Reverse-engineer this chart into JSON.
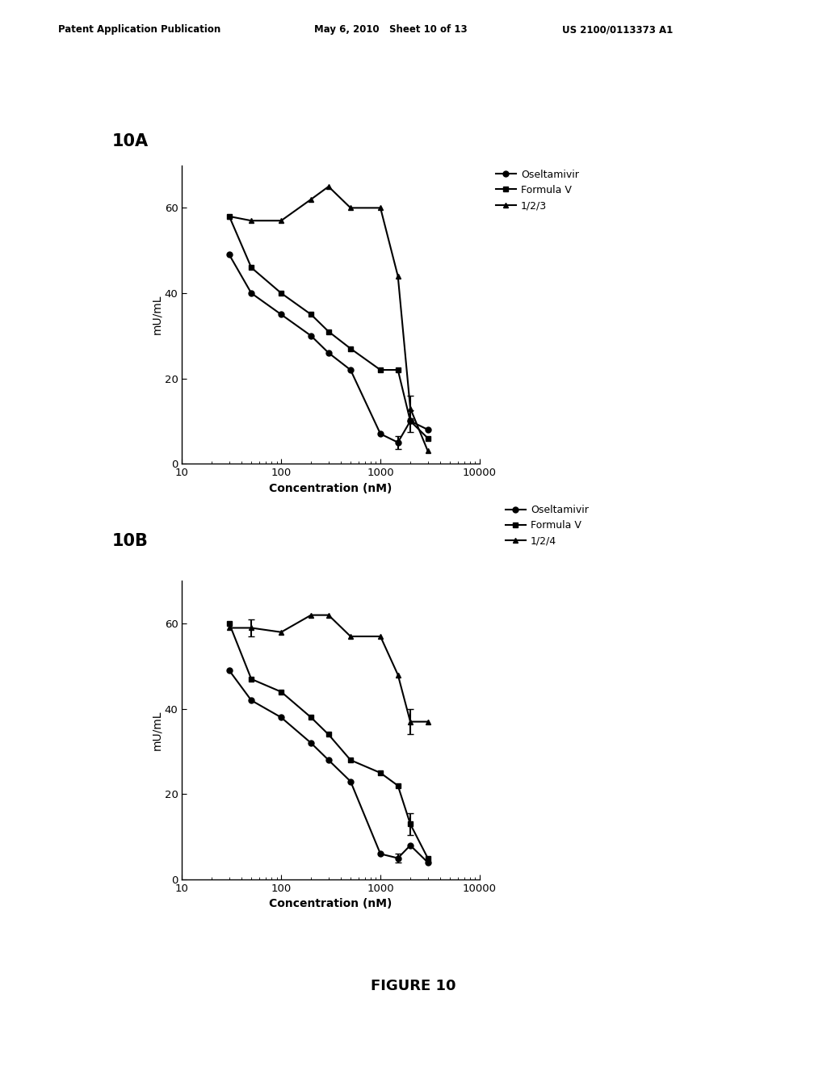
{
  "header_left": "Patent Application Publication",
  "header_mid": "May 6, 2010   Sheet 10 of 13",
  "header_right": "US 2100/0113373 A1",
  "figure_label": "FIGURE 10",
  "panel_A_label": "10A",
  "panel_B_label": "10B",
  "legend_A": [
    "Oseltamivir",
    "Formula V",
    "1/2/3"
  ],
  "legend_B": [
    "Oseltamivir",
    "Formula V",
    "1/2/4"
  ],
  "xlabel": "Concentration (nM)",
  "ylabel": "mU/mL",
  "xlim_log": [
    10,
    10000
  ],
  "xticks": [
    10,
    100,
    1000,
    10000
  ],
  "ylim": [
    0,
    70
  ],
  "yticks": [
    0,
    20,
    40,
    60
  ],
  "A_oseltamivir_x": [
    30,
    50,
    100,
    200,
    300,
    500,
    1000,
    1500,
    2000,
    3000
  ],
  "A_oseltamivir_y": [
    49,
    40,
    35,
    30,
    26,
    22,
    7,
    5,
    10,
    8
  ],
  "A_oseltamivir_yerr": [
    0,
    0,
    0,
    0,
    0,
    0,
    0,
    1.5,
    0,
    0
  ],
  "A_formulaV_x": [
    30,
    50,
    100,
    200,
    300,
    500,
    1000,
    1500,
    2000,
    3000
  ],
  "A_formulaV_y": [
    58,
    46,
    40,
    35,
    31,
    27,
    22,
    22,
    10,
    6
  ],
  "A_formulaV_yerr": [
    0,
    0,
    0,
    0,
    0,
    0,
    0,
    0,
    2.5,
    0
  ],
  "A_123_x": [
    30,
    50,
    100,
    200,
    300,
    500,
    1000,
    1500,
    2000,
    3000
  ],
  "A_123_y": [
    58,
    57,
    57,
    62,
    65,
    60,
    60,
    44,
    13,
    3
  ],
  "A_123_yerr": [
    0,
    0,
    0,
    0,
    0,
    0,
    0,
    0,
    3,
    0
  ],
  "B_oseltamivir_x": [
    30,
    50,
    100,
    200,
    300,
    500,
    1000,
    1500,
    2000,
    3000
  ],
  "B_oseltamivir_y": [
    49,
    42,
    38,
    32,
    28,
    23,
    6,
    5,
    8,
    4
  ],
  "B_oseltamivir_yerr": [
    0,
    0,
    0,
    0,
    0,
    0,
    0,
    1,
    0,
    0
  ],
  "B_formulaV_x": [
    30,
    50,
    100,
    200,
    300,
    500,
    1000,
    1500,
    2000,
    3000
  ],
  "B_formulaV_y": [
    60,
    47,
    44,
    38,
    34,
    28,
    25,
    22,
    13,
    5
  ],
  "B_formulaV_yerr": [
    0,
    0,
    0,
    0,
    0,
    0,
    0,
    0,
    2.5,
    0
  ],
  "B_124_x": [
    30,
    50,
    100,
    200,
    300,
    500,
    1000,
    1500,
    2000,
    3000
  ],
  "B_124_y": [
    59,
    59,
    58,
    62,
    62,
    57,
    57,
    48,
    37,
    37
  ],
  "B_124_yerr": [
    0,
    2,
    0,
    0,
    0,
    0,
    0,
    0,
    3,
    0
  ],
  "line_color": "#000000",
  "bg_color": "#ffffff",
  "marker_circle": "o",
  "marker_square": "s",
  "marker_triangle": "^",
  "markersize": 5,
  "linewidth": 1.5
}
